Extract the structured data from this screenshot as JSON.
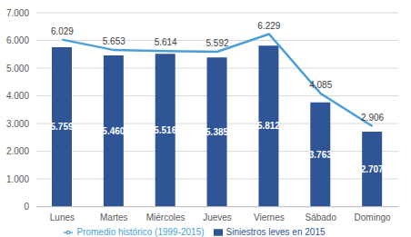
{
  "chart_data": {
    "type": "bar",
    "categories": [
      "Lunes",
      "Martes",
      "Miércoles",
      "Jueves",
      "Viernes",
      "Sábado",
      "Domingo"
    ],
    "series": [
      {
        "name": "Siniestros leves en 2015",
        "type": "bar",
        "color": "#2F5597",
        "values": [
          5759,
          5460,
          5516,
          5385,
          5812,
          3763,
          2707
        ],
        "value_labels": [
          "5.759",
          "5.460",
          "5.516",
          "5.385",
          "5.812",
          "3.763",
          "2.707"
        ]
      },
      {
        "name": "Promedio histórico (1999-2015)",
        "type": "line",
        "color": "#4A9FD8",
        "values": [
          6029,
          5653,
          5614,
          5592,
          6229,
          4085,
          2906
        ],
        "value_labels": [
          "6.029",
          "5.653",
          "5.614",
          "5.592",
          "6.229",
          "4.085",
          "2.906"
        ]
      }
    ],
    "ylim": [
      0,
      7000
    ],
    "yticks": [
      0,
      {
        "value": 1000,
        "label": "1.000"
      },
      {
        "value": 2000,
        "label": "2.000"
      },
      {
        "value": 3000,
        "label": "3.000"
      },
      {
        "value": 4000,
        "label": "4.000"
      },
      {
        "value": 5000,
        "label": "5.000"
      },
      {
        "value": 6000,
        "label": "6.000"
      },
      {
        "value": 7000,
        "label": "7.000"
      }
    ],
    "grid": true,
    "legend": "bottom",
    "data_labels": true
  }
}
